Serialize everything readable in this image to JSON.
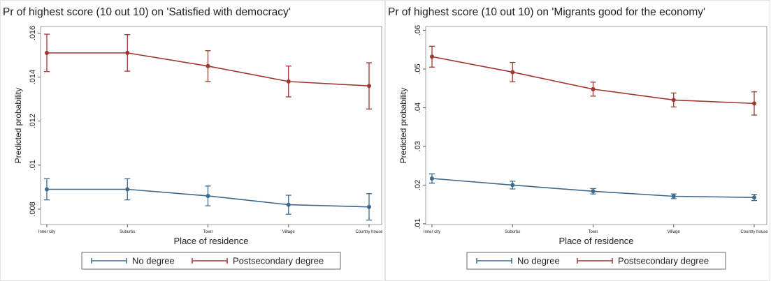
{
  "chart_data": [
    {
      "type": "line",
      "title": "Pr of highest score (10 out 10) on 'Satisfied with democracy'",
      "xlabel": "Place of residence",
      "ylabel": "Predicted probability",
      "categories": [
        "Inner city",
        "Suburbs",
        "Town",
        "Village",
        "Country house"
      ],
      "ylim": [
        0.0073,
        0.0163
      ],
      "yticks": [
        {
          "value": 0.008,
          "label": ".008"
        },
        {
          "value": 0.01,
          "label": ".01"
        },
        {
          "value": 0.012,
          "label": ".012"
        },
        {
          "value": 0.014,
          "label": ".014"
        },
        {
          "value": 0.016,
          "label": ".016"
        }
      ],
      "series": [
        {
          "name": "No degree",
          "color": "#3d6a8c",
          "values": [
            0.0089,
            0.0089,
            0.0086,
            0.0082,
            0.0081
          ],
          "errors": [
            0.00048,
            0.00048,
            0.00045,
            0.00043,
            0.0006
          ]
        },
        {
          "name": "Postsecondary degree",
          "color": "#a0372f",
          "values": [
            0.0151,
            0.0151,
            0.0145,
            0.0138,
            0.0136
          ],
          "errors": [
            0.00085,
            0.00083,
            0.0007,
            0.0007,
            0.00105
          ]
        }
      ]
    },
    {
      "type": "line",
      "title": "Pr of highest score (10 out 10) on 'Migrants good for the economy'",
      "xlabel": "Place of residence",
      "ylabel": "Predicted probability",
      "categories": [
        "Inner city",
        "Suburbs",
        "Town",
        "Village",
        "Country house"
      ],
      "ylim": [
        0.0098,
        0.061
      ],
      "yticks": [
        {
          "value": 0.01,
          "label": ".01"
        },
        {
          "value": 0.02,
          "label": ".02"
        },
        {
          "value": 0.03,
          "label": ".03"
        },
        {
          "value": 0.04,
          "label": ".04"
        },
        {
          "value": 0.05,
          "label": ".05"
        },
        {
          "value": 0.06,
          "label": ".06"
        }
      ],
      "series": [
        {
          "name": "No degree",
          "color": "#3d6a8c",
          "values": [
            0.0217,
            0.02,
            0.0184,
            0.0171,
            0.0168
          ],
          "errors": [
            0.0012,
            0.001,
            0.0007,
            0.0006,
            0.0008
          ]
        },
        {
          "name": "Postsecondary degree",
          "color": "#a0372f",
          "values": [
            0.0532,
            0.0492,
            0.0448,
            0.042,
            0.0411
          ],
          "errors": [
            0.0027,
            0.0025,
            0.0018,
            0.0018,
            0.003
          ]
        }
      ]
    }
  ]
}
